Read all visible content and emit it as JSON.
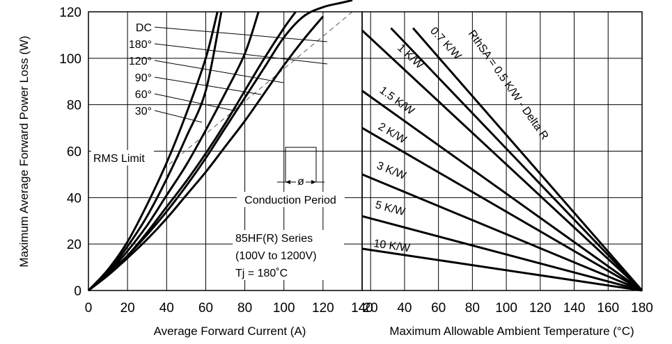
{
  "chart_data": [
    {
      "type": "line",
      "xlabel": "Average Forward Current (A)",
      "ylabel": "Maximum Average Forward Power Loss (W)",
      "xlim": [
        0,
        140
      ],
      "ylim": [
        0,
        120
      ],
      "x_ticks": [
        "0",
        "20",
        "40",
        "60",
        "80",
        "100",
        "120",
        "140"
      ],
      "y_ticks": [
        "0",
        "20",
        "40",
        "60",
        "80",
        "100",
        "120"
      ],
      "grid": true,
      "series": [
        {
          "name": "DC",
          "x": [
            0,
            10,
            20,
            30,
            40,
            50,
            60,
            70,
            80,
            90,
            100,
            110,
            120,
            130,
            135
          ],
          "y": [
            0,
            7,
            15,
            24,
            34,
            45,
            57,
            70,
            83,
            96,
            109,
            118,
            122,
            124,
            125
          ]
        },
        {
          "name": "180°",
          "x": [
            0,
            10,
            20,
            30,
            40,
            50,
            60,
            70,
            80,
            90,
            100,
            110,
            120
          ],
          "y": [
            0,
            6.5,
            14,
            22,
            31,
            41,
            51,
            62,
            73,
            85,
            97,
            108,
            118
          ]
        },
        {
          "name": "120°",
          "x": [
            0,
            10,
            20,
            30,
            40,
            50,
            60,
            70,
            80,
            90,
            100,
            106
          ],
          "y": [
            0,
            7,
            15,
            25,
            36,
            47,
            59,
            72,
            86,
            100,
            113,
            120
          ]
        },
        {
          "name": "90°",
          "x": [
            0,
            10,
            20,
            30,
            40,
            50,
            60,
            70,
            80,
            87
          ],
          "y": [
            0,
            7.5,
            17,
            28,
            41,
            54,
            69,
            85,
            102,
            120
          ]
        },
        {
          "name": "60°",
          "x": [
            0,
            10,
            20,
            30,
            40,
            50,
            60,
            68
          ],
          "y": [
            0,
            8,
            19,
            32,
            48,
            66,
            86,
            120
          ]
        },
        {
          "name": "30°",
          "x": [
            0,
            10,
            20,
            30,
            40,
            50,
            60,
            66
          ],
          "y": [
            0,
            9,
            21,
            37,
            55,
            76,
            100,
            120
          ]
        }
      ],
      "rms_limit": {
        "x": [
          38,
          135
        ],
        "y": [
          52,
          120
        ]
      },
      "annotations": {
        "rms_label": "RMS Limit",
        "conduction_label": "Conduction Period",
        "phi_symbol": "ø",
        "series_title": "85HF(R) Series",
        "voltage_range": "(100V to 1200V)",
        "tj": "Tj = 180˚C"
      }
    },
    {
      "type": "line",
      "xlabel": "Maximum Allowable Ambient Temperature (°C)",
      "xlim": [
        15,
        180
      ],
      "ylim": [
        0,
        120
      ],
      "x_ticks": [
        "20",
        "40",
        "60",
        "80",
        "100",
        "120",
        "140",
        "160",
        "180"
      ],
      "grid": true,
      "series": [
        {
          "name": "RthSA = 0.5 K/W - Delta R",
          "x": [
            45,
            180
          ],
          "y": [
            113,
            0
          ]
        },
        {
          "name": "0.7 K/W",
          "x": [
            32,
            180
          ],
          "y": [
            113,
            0
          ]
        },
        {
          "name": "1 K/W",
          "x": [
            15,
            180
          ],
          "y": [
            112,
            0
          ]
        },
        {
          "name": "1.5 K/W",
          "x": [
            15,
            180
          ],
          "y": [
            86,
            0
          ]
        },
        {
          "name": "2 K/W",
          "x": [
            15,
            180
          ],
          "y": [
            70,
            0
          ]
        },
        {
          "name": "3 K/W",
          "x": [
            15,
            180
          ],
          "y": [
            50,
            0
          ]
        },
        {
          "name": "5 K/W",
          "x": [
            15,
            180
          ],
          "y": [
            32,
            0
          ]
        },
        {
          "name": "10 K/W",
          "x": [
            15,
            180
          ],
          "y": [
            18,
            0
          ]
        }
      ]
    }
  ]
}
